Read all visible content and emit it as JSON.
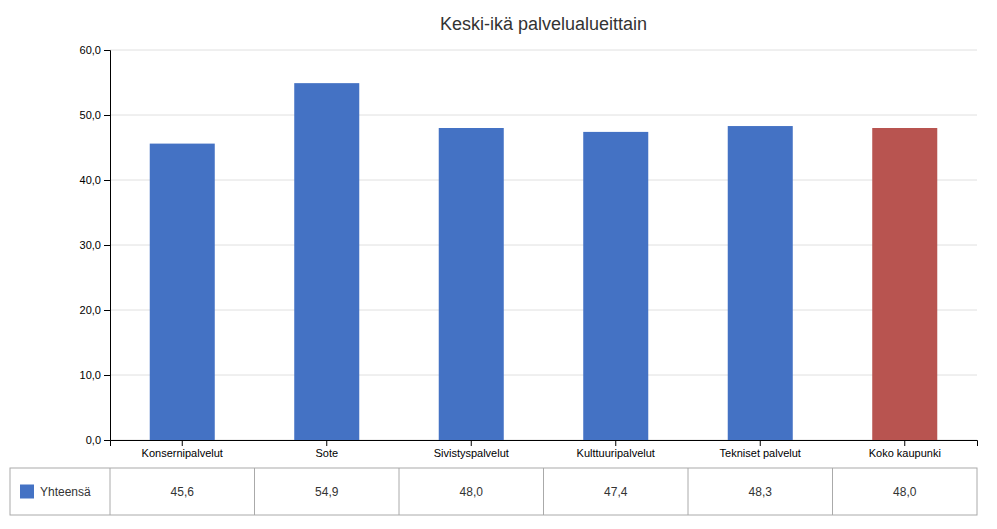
{
  "chart_data": {
    "type": "bar",
    "title": "Keski-ikä palvelualueittain",
    "categories": [
      "Konsernipalvelut",
      "Sote",
      "Sivistyspalvelut",
      "Kulttuuripalvelut",
      "Tekniset palvelut",
      "Koko kaupunki"
    ],
    "series": [
      {
        "name": "Yhteensä",
        "color": "#4472C4",
        "colors": [
          "#4472C4",
          "#4472C4",
          "#4472C4",
          "#4472C4",
          "#4472C4",
          "#B85450"
        ],
        "values": [
          45.6,
          54.9,
          48.0,
          47.4,
          48.3,
          48.0
        ],
        "value_labels": [
          "45,6",
          "54,9",
          "48,0",
          "47,4",
          "48,3",
          "48,0"
        ]
      }
    ],
    "ylim": [
      0,
      60
    ],
    "yticks": [
      {
        "value": 0,
        "label": "0,0"
      },
      {
        "value": 10,
        "label": "10,0"
      },
      {
        "value": 20,
        "label": "20,0"
      },
      {
        "value": 30,
        "label": "30,0"
      },
      {
        "value": 40,
        "label": "40,0"
      },
      {
        "value": 50,
        "label": "50,0"
      },
      {
        "value": 60,
        "label": "60,0"
      }
    ],
    "grid": true,
    "legend": "bottom-left",
    "data_labels": true
  }
}
